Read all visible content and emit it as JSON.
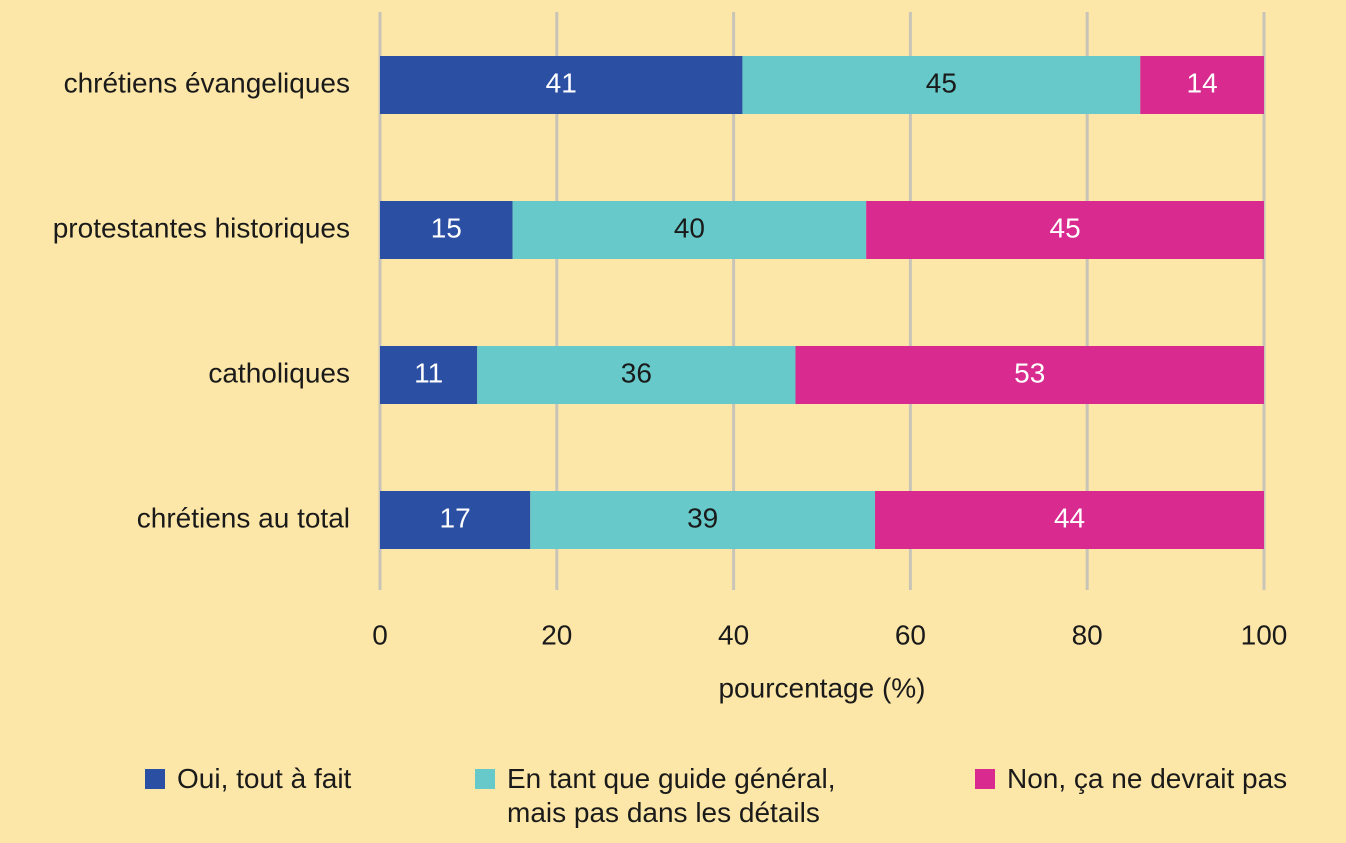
{
  "chart_data": {
    "type": "stacked-bar-horizontal",
    "categories": [
      "chrétiens évangeliques",
      "protestantes historiques",
      "catholiques",
      "chrétiens au total"
    ],
    "series": [
      {
        "name": "Oui, tout à fait",
        "color": "#2b4fa3",
        "values": [
          41,
          15,
          11,
          17
        ]
      },
      {
        "name": "En tant que guide général, mais pas dans les détails",
        "color": "#67c9c9",
        "values": [
          45,
          40,
          36,
          39
        ]
      },
      {
        "name": "Non, ça ne devrait pas",
        "color": "#d92a8f",
        "values": [
          14,
          45,
          53,
          44
        ]
      }
    ],
    "x_label": "pourcentage (%)",
    "xlim": [
      0,
      100
    ],
    "xticks": [
      0,
      20,
      40,
      60,
      80,
      100
    ],
    "grid": true
  }
}
